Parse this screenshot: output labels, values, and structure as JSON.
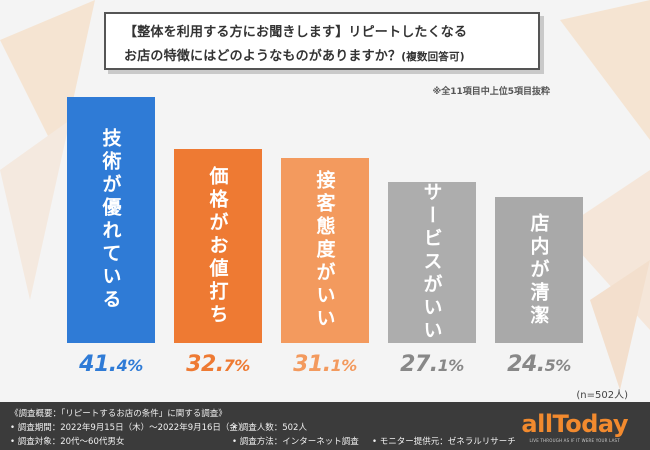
{
  "title": {
    "line1": "【整体を利用する方にお聞きします】リピートしたくなる",
    "line2": "お店の特徴にはどのようなものがありますか？",
    "line2_note": "(複数回答可)"
  },
  "subnote": "※全11項目中上位5項目抜粋",
  "n_note": "(n=502人)",
  "chart_data": {
    "type": "bar",
    "categories": [
      "技術が優れている",
      "価格がお値打ち",
      "接客態度がいい",
      "サービスがいい",
      "店内が清潔"
    ],
    "values": [
      41.4,
      32.7,
      31.1,
      27.1,
      24.5
    ],
    "value_labels": [
      {
        "int": "41.",
        "dec": "4%"
      },
      {
        "int": "32.",
        "dec": "7%"
      },
      {
        "int": "31.",
        "dec": "1%"
      },
      {
        "int": "27.",
        "dec": "1%"
      },
      {
        "int": "24.",
        "dec": "5%"
      }
    ],
    "unit": "%",
    "colors": [
      "#2f7bd6",
      "#ee7a33",
      "#f39a5e",
      "#adadad",
      "#a9a9a9"
    ],
    "value_colors": [
      "#2f7bd6",
      "#ee7a33",
      "#f39a5e",
      "#888888",
      "#888888"
    ],
    "ylim": [
      0,
      41.4
    ],
    "grid": false,
    "legend": "none"
  },
  "footer": {
    "line1": "《調査概要：「リピートするお店の条件」に関する調査》",
    "period": "• 調査期間：2022年9月15日（木）〜2022年9月16日（金）",
    "target": "• 調査対象：20代〜60代男女",
    "count": "• 調査人数：502人",
    "method": "• 調査方法：インターネット調査",
    "provider": "• モニター提供元：ゼネラルリサーチ",
    "logo": "allToday",
    "logo_sub": "LIVE THROUGH AS IF IT WERE YOUR LAST"
  }
}
